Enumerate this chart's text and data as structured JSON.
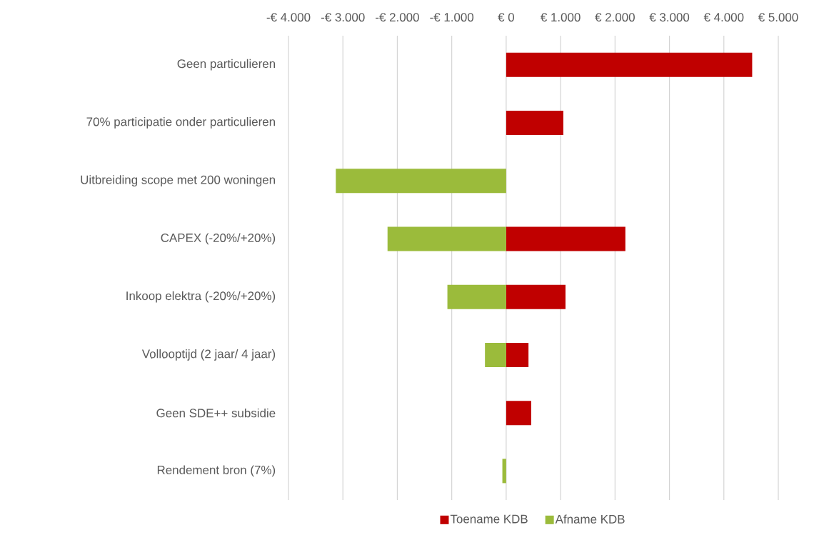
{
  "chart_data": {
    "type": "bar",
    "orientation": "horizontal",
    "categories": [
      "Geen particulieren",
      "70% participatie onder particulieren",
      "Uitbreiding scope met 200 woningen",
      "CAPEX (-20%/+20%)",
      "Inkoop elektra (-20%/+20%)",
      "Vollooptijd (2 jaar/ 4 jaar)",
      "Geen SDE++ subsidie",
      "Rendement bron (7%)"
    ],
    "series": [
      {
        "name": "Toename KDB",
        "color": "#c00000",
        "values": [
          4520,
          1050,
          null,
          2190,
          1090,
          410,
          460,
          null
        ]
      },
      {
        "name": "Afname KDB",
        "color": "#9bbb3b",
        "values": [
          null,
          null,
          -3130,
          -2180,
          -1080,
          -390,
          null,
          -70
        ]
      }
    ],
    "xlim": [
      -4000,
      5000
    ],
    "xticks": [
      {
        "value": -4000,
        "label": "-€ 4.000"
      },
      {
        "value": -3000,
        "label": "-€ 3.000"
      },
      {
        "value": -2000,
        "label": "-€ 2.000"
      },
      {
        "value": -1000,
        "label": "-€ 1.000"
      },
      {
        "value": 0,
        "label": "€ 0"
      },
      {
        "value": 1000,
        "label": "€ 1.000"
      },
      {
        "value": 2000,
        "label": "€ 2.000"
      },
      {
        "value": 3000,
        "label": "€ 3.000"
      },
      {
        "value": 4000,
        "label": "€ 4.000"
      },
      {
        "value": 5000,
        "label": "€ 5.000"
      }
    ],
    "grid": "x",
    "legend": "bottom"
  }
}
